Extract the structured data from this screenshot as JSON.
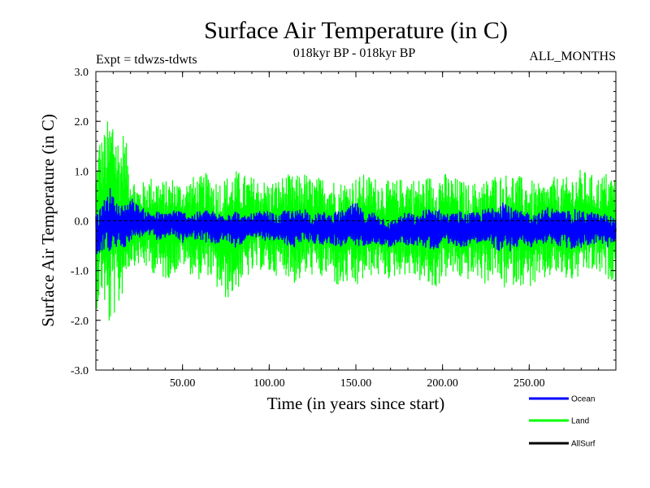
{
  "chart_data": {
    "type": "line",
    "title": "Surface Air Temperature (in C)",
    "subtitle_left": "Expt = tdwzs-tdwts",
    "subtitle_center": "018kyr BP - 018kyr BP",
    "subtitle_right": "ALL_MONTHS",
    "xlabel": "Time (in years since start)",
    "ylabel": "Surface Air Temperature (in C)",
    "xlim": [
      0,
      300
    ],
    "ylim": [
      -3.0,
      3.0
    ],
    "x_ticks": [
      50,
      100,
      150,
      200,
      250
    ],
    "x_tick_labels": [
      "50.00",
      "100.00",
      "150.00",
      "200.00",
      "250.00"
    ],
    "y_ticks": [
      -3,
      -2,
      -1,
      0,
      1,
      2,
      3
    ],
    "y_tick_labels": [
      "-3.0",
      "-2.0",
      "-1.0",
      "0.0",
      "1.0",
      "2.0",
      "3.0"
    ],
    "zero_line": "dashed",
    "legend_position": "bottom-right",
    "series": [
      {
        "name": "Land",
        "color": "#00ff00",
        "x": [
          0,
          2,
          4,
          6,
          8,
          10,
          12,
          14,
          16,
          18,
          20,
          25,
          30,
          35,
          40,
          45,
          50,
          55,
          60,
          65,
          70,
          75,
          80,
          85,
          90,
          95,
          100,
          105,
          110,
          115,
          120,
          125,
          130,
          135,
          140,
          145,
          150,
          155,
          160,
          165,
          170,
          175,
          180,
          185,
          190,
          195,
          200,
          205,
          210,
          215,
          220,
          225,
          230,
          235,
          240,
          245,
          250,
          255,
          260,
          265,
          270,
          275,
          280,
          285,
          290,
          295,
          300
        ],
        "upper": [
          1.1,
          1.8,
          1.7,
          2.0,
          2.1,
          2.35,
          1.9,
          1.6,
          1.85,
          1.5,
          1.0,
          0.7,
          0.9,
          0.9,
          0.8,
          0.9,
          0.75,
          0.9,
          0.9,
          1.0,
          0.85,
          0.9,
          1.05,
          0.95,
          0.9,
          0.85,
          0.8,
          0.85,
          0.95,
          0.9,
          1.0,
          0.85,
          0.9,
          0.9,
          0.8,
          0.85,
          0.9,
          0.95,
          0.9,
          0.85,
          0.8,
          0.85,
          0.9,
          0.85,
          0.9,
          0.95,
          1.0,
          0.9,
          0.85,
          0.75,
          0.8,
          0.85,
          0.95,
          0.95,
          1.0,
          0.9,
          0.85,
          0.75,
          0.8,
          0.9,
          0.85,
          0.95,
          1.05,
          0.95,
          0.9,
          1.0,
          0.9
        ],
        "lower": [
          -1.8,
          -1.7,
          -1.5,
          -2.0,
          -2.25,
          -1.9,
          -2.0,
          -1.7,
          -1.4,
          -1.1,
          -0.9,
          -0.9,
          -1.0,
          -1.1,
          -1.2,
          -1.1,
          -0.9,
          -1.1,
          -1.2,
          -1.1,
          -1.4,
          -1.6,
          -1.5,
          -1.2,
          -1.1,
          -1.0,
          -1.1,
          -1.1,
          -1.1,
          -1.3,
          -1.15,
          -1.1,
          -1.2,
          -1.1,
          -1.4,
          -1.3,
          -1.4,
          -1.2,
          -1.1,
          -1.15,
          -1.2,
          -1.1,
          -1.1,
          -1.2,
          -1.3,
          -1.45,
          -1.2,
          -1.1,
          -1.2,
          -1.2,
          -1.15,
          -1.3,
          -1.1,
          -1.4,
          -1.3,
          -1.3,
          -1.35,
          -1.3,
          -1.2,
          -1.1,
          -1.2,
          -1.25,
          -1.15,
          -1.05,
          -1.1,
          -1.2,
          -1.2
        ]
      },
      {
        "name": "Ocean",
        "color": "#0000ff",
        "x": [
          0,
          2,
          4,
          6,
          8,
          10,
          12,
          14,
          16,
          18,
          20,
          25,
          30,
          35,
          40,
          45,
          50,
          55,
          60,
          65,
          70,
          75,
          80,
          85,
          90,
          95,
          100,
          105,
          110,
          115,
          120,
          125,
          130,
          135,
          140,
          145,
          150,
          155,
          160,
          165,
          170,
          175,
          180,
          185,
          190,
          195,
          200,
          205,
          210,
          215,
          220,
          225,
          230,
          235,
          240,
          245,
          250,
          255,
          260,
          265,
          270,
          275,
          280,
          285,
          290,
          295,
          300
        ],
        "upper": [
          0.3,
          0.2,
          0.4,
          0.5,
          0.7,
          0.5,
          0.4,
          0.3,
          0.35,
          0.4,
          0.5,
          0.3,
          0.2,
          0.2,
          0.15,
          0.25,
          0.2,
          0.15,
          0.2,
          0.25,
          0.15,
          0.2,
          0.25,
          0.1,
          0.15,
          0.2,
          0.2,
          0.1,
          0.25,
          0.2,
          0.3,
          0.1,
          0.2,
          0.15,
          0.2,
          0.25,
          0.4,
          0.15,
          0.2,
          0.1,
          0.0,
          0.1,
          0.2,
          0.1,
          0.25,
          0.3,
          0.2,
          0.15,
          0.2,
          0.15,
          0.2,
          0.25,
          0.35,
          0.5,
          0.25,
          0.2,
          0.2,
          0.15,
          0.3,
          0.25,
          0.2,
          0.25,
          0.2,
          0.2,
          0.15,
          0.15,
          0.05
        ],
        "lower": [
          -0.75,
          -0.7,
          -0.6,
          -0.55,
          -0.7,
          -0.6,
          -0.55,
          -0.6,
          -0.55,
          -0.5,
          -0.4,
          -0.35,
          -0.3,
          -0.4,
          -0.35,
          -0.3,
          -0.45,
          -0.35,
          -0.4,
          -0.45,
          -0.5,
          -0.4,
          -0.55,
          -0.45,
          -0.4,
          -0.35,
          -0.45,
          -0.4,
          -0.5,
          -0.55,
          -0.4,
          -0.45,
          -0.5,
          -0.45,
          -0.55,
          -0.5,
          -0.55,
          -0.5,
          -0.45,
          -0.5,
          -0.55,
          -0.45,
          -0.5,
          -0.5,
          -0.55,
          -0.6,
          -0.5,
          -0.45,
          -0.55,
          -0.5,
          -0.45,
          -0.5,
          -0.55,
          -0.7,
          -0.6,
          -0.5,
          -0.55,
          -0.5,
          -0.45,
          -0.5,
          -0.55,
          -0.6,
          -0.55,
          -0.5,
          -0.45,
          -0.55,
          -0.5
        ]
      },
      {
        "name": "AllSurf",
        "color": "#000000",
        "x": [],
        "upper": [],
        "lower": []
      }
    ],
    "legend": [
      {
        "label": "Ocean",
        "color": "#0000ff"
      },
      {
        "label": "Land",
        "color": "#00ff00"
      },
      {
        "label": "AllSurf",
        "color": "#000000"
      }
    ]
  }
}
